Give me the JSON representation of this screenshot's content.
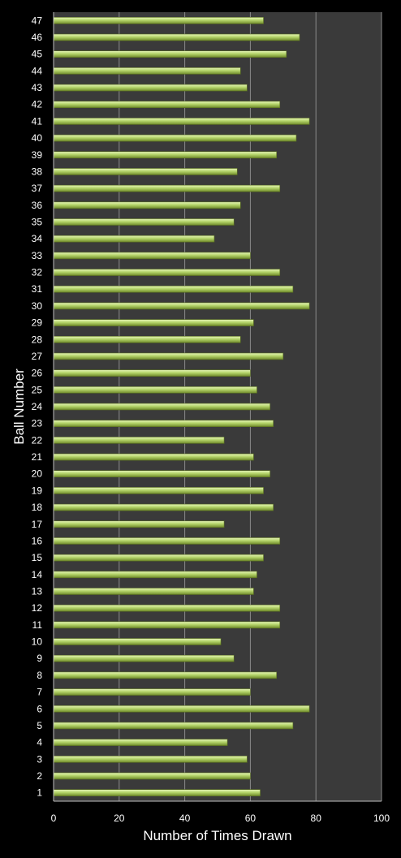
{
  "chart_data": {
    "type": "bar",
    "orientation": "horizontal",
    "xlabel": "Number of Times Drawn",
    "ylabel": "Ball Number",
    "xlim": [
      0,
      100
    ],
    "xticks": [
      0,
      20,
      40,
      60,
      80,
      100
    ],
    "grid": "vertical",
    "legend": "none",
    "colors": {
      "background": "#000000",
      "plot_area": "#3a3a3a",
      "gridline": "#8a8a8a",
      "bar_fill": "#b4d46a",
      "bar_highlight": "#e6f5b8",
      "bar_shadow": "#6f8a2a",
      "text": "#ffffff"
    },
    "categories": [
      "1",
      "2",
      "3",
      "4",
      "5",
      "6",
      "7",
      "8",
      "9",
      "10",
      "11",
      "12",
      "13",
      "14",
      "15",
      "16",
      "17",
      "18",
      "19",
      "20",
      "21",
      "22",
      "23",
      "24",
      "25",
      "26",
      "27",
      "28",
      "29",
      "30",
      "31",
      "32",
      "33",
      "34",
      "35",
      "36",
      "37",
      "38",
      "39",
      "40",
      "41",
      "42",
      "43",
      "44",
      "45",
      "46",
      "47"
    ],
    "values": [
      63,
      60,
      59,
      53,
      73,
      78,
      60,
      68,
      55,
      51,
      69,
      69,
      61,
      62,
      64,
      69,
      52,
      67,
      64,
      66,
      61,
      52,
      67,
      66,
      62,
      60,
      70,
      57,
      61,
      78,
      73,
      69,
      60,
      49,
      55,
      57,
      69,
      56,
      68,
      74,
      78,
      69,
      59,
      57,
      71,
      75,
      64
    ]
  }
}
